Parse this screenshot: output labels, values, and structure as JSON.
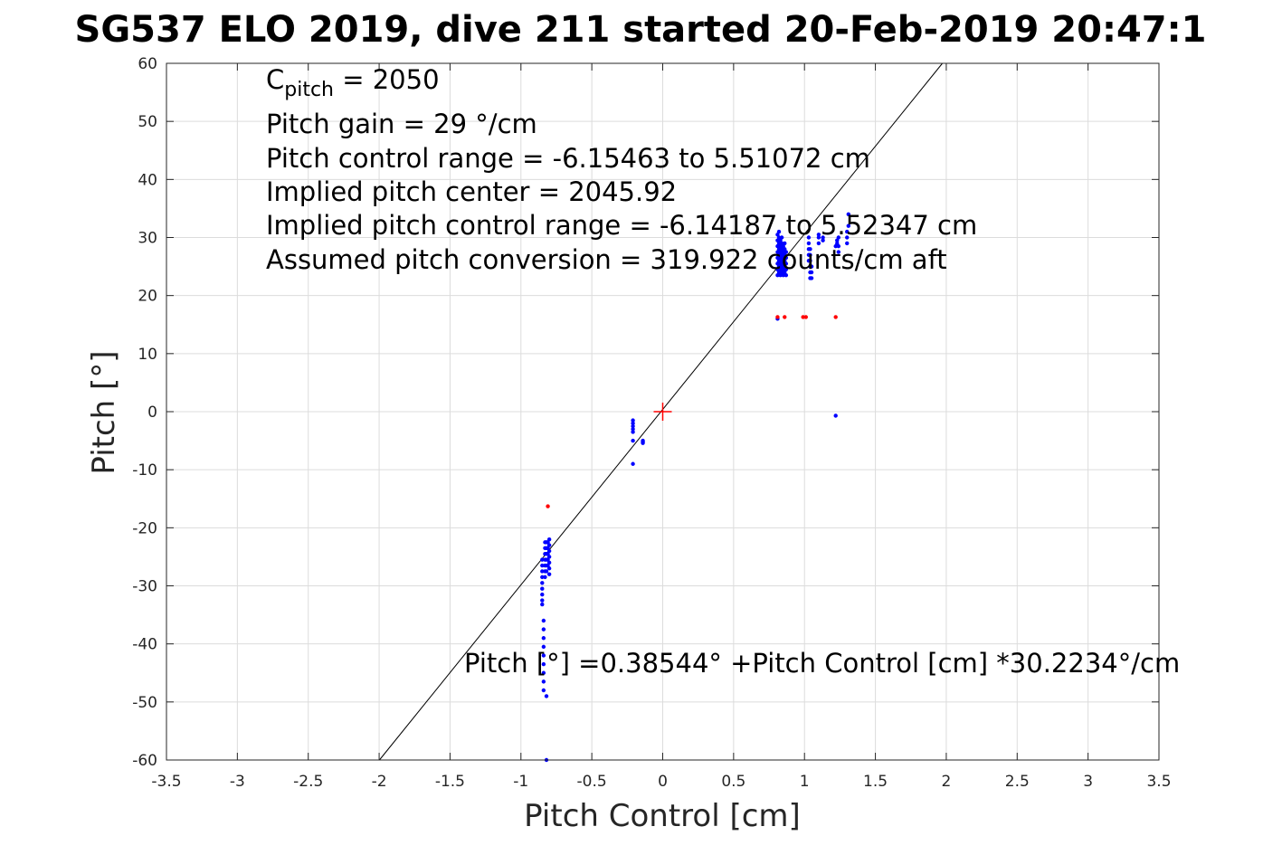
{
  "chart_data": {
    "type": "scatter",
    "title": "SG537 ELO 2019, dive 211 started 20-Feb-2019 20:47:1",
    "xlabel": "Pitch Control [cm]",
    "ylabel": "Pitch [°]",
    "xlim": [
      -3.5,
      3.5
    ],
    "ylim": [
      -60,
      60
    ],
    "xticks": [
      -3.5,
      -3,
      -2.5,
      -2,
      -1.5,
      -1,
      -0.5,
      0,
      0.5,
      1,
      1.5,
      2,
      2.5,
      3,
      3.5
    ],
    "xtick_labels": [
      "-3.5",
      "-3",
      "-2.5",
      "-2",
      "-1.5",
      "-1",
      "-0.5",
      "0",
      "0.5",
      "1",
      "1.5",
      "2",
      "2.5",
      "3",
      "3.5"
    ],
    "yticks": [
      -60,
      -50,
      -40,
      -30,
      -20,
      -10,
      0,
      10,
      20,
      30,
      40,
      50,
      60
    ],
    "ytick_labels": [
      "-60",
      "-50",
      "-40",
      "-30",
      "-20",
      "-10",
      "0",
      "10",
      "20",
      "30",
      "40",
      "50",
      "60"
    ],
    "grid": true,
    "annotations": {
      "cpitch_sym": "C",
      "cpitch_sub": "pitch",
      "cpitch_val": " = 2050",
      "pitch_gain": "Pitch gain = 29 °/cm",
      "control_range": "Pitch control range = -6.15463 to 5.51072 cm",
      "implied_center": "Implied pitch center = 2045.92",
      "implied_range": "Implied pitch control range = -6.14187 to 5.52347 cm",
      "conversion": "Assumed pitch conversion = 319.922 counts/cm aft",
      "fit_equation": "Pitch [°] =0.38544° +Pitch Control [cm] *30.2234°/cm"
    },
    "fit_line": {
      "intercept": 0.38544,
      "slope": 30.2234,
      "color": "#000000"
    },
    "center_marker": {
      "x": 0,
      "y": 0,
      "color": "#ff0000"
    },
    "series": [
      {
        "color": "#0000ff",
        "points": [
          [
            -0.85,
            -25.5
          ],
          [
            -0.85,
            -26.5
          ],
          [
            -0.85,
            -27.5
          ],
          [
            -0.85,
            -28.5
          ],
          [
            -0.85,
            -29.5
          ],
          [
            -0.85,
            -30.5
          ],
          [
            -0.85,
            -31.5
          ],
          [
            -0.85,
            -32.5
          ],
          [
            -0.85,
            -33.2
          ],
          [
            -0.84,
            -36
          ],
          [
            -0.84,
            -37.5
          ],
          [
            -0.84,
            -39
          ],
          [
            -0.84,
            -40.5
          ],
          [
            -0.84,
            -42
          ],
          [
            -0.84,
            -43.5
          ],
          [
            -0.84,
            -45
          ],
          [
            -0.84,
            -46.5
          ],
          [
            -0.84,
            -48
          ],
          [
            -0.83,
            -22.5
          ],
          [
            -0.83,
            -23.5
          ],
          [
            -0.83,
            -24.5
          ],
          [
            -0.83,
            -25.5
          ],
          [
            -0.83,
            -26.5
          ],
          [
            -0.83,
            -27.5
          ],
          [
            -0.83,
            -28.5
          ],
          [
            -0.82,
            -22.5
          ],
          [
            -0.82,
            -23.5
          ],
          [
            -0.82,
            -24.5
          ],
          [
            -0.82,
            -25.5
          ],
          [
            -0.82,
            -26.5
          ],
          [
            -0.82,
            -27.5
          ],
          [
            -0.82,
            -49
          ],
          [
            -0.82,
            -60
          ],
          [
            -0.81,
            -22.5
          ],
          [
            -0.81,
            -23.5
          ],
          [
            -0.81,
            -24.5
          ],
          [
            -0.81,
            -25.5
          ],
          [
            -0.81,
            -26.5
          ],
          [
            -0.8,
            -22
          ],
          [
            -0.8,
            -23
          ],
          [
            -0.8,
            -24
          ],
          [
            -0.8,
            -25
          ],
          [
            -0.8,
            -26
          ],
          [
            -0.8,
            -27
          ],
          [
            -0.8,
            -28
          ],
          [
            -0.21,
            -1.5
          ],
          [
            -0.21,
            -2.0
          ],
          [
            -0.21,
            -2.5
          ],
          [
            -0.21,
            -3.0
          ],
          [
            -0.21,
            -3.5
          ],
          [
            -0.21,
            -5.0
          ],
          [
            -0.21,
            -9.0
          ],
          [
            -0.14,
            -5.0
          ],
          [
            -0.14,
            -5.2
          ],
          [
            -0.14,
            -5.4
          ],
          [
            0.81,
            23.5
          ],
          [
            0.81,
            24.5
          ],
          [
            0.81,
            25.5
          ],
          [
            0.81,
            26.5
          ],
          [
            0.81,
            27.5
          ],
          [
            0.81,
            28.5
          ],
          [
            0.81,
            29.5
          ],
          [
            0.81,
            30.5
          ],
          [
            0.81,
            16.0
          ],
          [
            0.82,
            24
          ],
          [
            0.82,
            25
          ],
          [
            0.82,
            26
          ],
          [
            0.82,
            27
          ],
          [
            0.82,
            28
          ],
          [
            0.82,
            29
          ],
          [
            0.82,
            30
          ],
          [
            0.82,
            31
          ],
          [
            0.83,
            23.5
          ],
          [
            0.83,
            24.5
          ],
          [
            0.83,
            25.5
          ],
          [
            0.83,
            26.5
          ],
          [
            0.83,
            27.5
          ],
          [
            0.83,
            28.5
          ],
          [
            0.83,
            29.5
          ],
          [
            0.84,
            24
          ],
          [
            0.84,
            25
          ],
          [
            0.84,
            26
          ],
          [
            0.84,
            27
          ],
          [
            0.84,
            28
          ],
          [
            0.84,
            29
          ],
          [
            0.84,
            30
          ],
          [
            0.85,
            23.5
          ],
          [
            0.85,
            24.5
          ],
          [
            0.85,
            25.5
          ],
          [
            0.85,
            26.5
          ],
          [
            0.85,
            27.5
          ],
          [
            0.85,
            28.5
          ],
          [
            0.86,
            24
          ],
          [
            0.86,
            25
          ],
          [
            0.86,
            26
          ],
          [
            0.86,
            27
          ],
          [
            0.86,
            28
          ],
          [
            0.86,
            29
          ],
          [
            0.87,
            23.5
          ],
          [
            0.87,
            24.5
          ],
          [
            0.87,
            25.5
          ],
          [
            0.87,
            26.5
          ],
          [
            0.87,
            27.5
          ],
          [
            1.03,
            26
          ],
          [
            1.03,
            27
          ],
          [
            1.03,
            28
          ],
          [
            1.03,
            29
          ],
          [
            1.03,
            30
          ],
          [
            1.04,
            23
          ],
          [
            1.04,
            24
          ],
          [
            1.04,
            25
          ],
          [
            1.04,
            26
          ],
          [
            1.04,
            27
          ],
          [
            1.04,
            28
          ],
          [
            1.05,
            23
          ],
          [
            1.05,
            24
          ],
          [
            1.05,
            25
          ],
          [
            1.1,
            29
          ],
          [
            1.1,
            30
          ],
          [
            1.1,
            30.5
          ],
          [
            1.13,
            29.5
          ],
          [
            1.13,
            30
          ],
          [
            1.22,
            28.5
          ],
          [
            1.22,
            -0.7
          ],
          [
            1.23,
            29
          ],
          [
            1.23,
            29.5
          ],
          [
            1.24,
            27.5
          ],
          [
            1.24,
            28.5
          ],
          [
            1.24,
            30
          ],
          [
            1.3,
            29
          ],
          [
            1.3,
            30
          ],
          [
            1.3,
            31
          ],
          [
            1.31,
            32
          ],
          [
            1.31,
            34
          ]
        ]
      },
      {
        "color": "#ff0000",
        "points": [
          [
            -0.81,
            -16.3
          ],
          [
            0.81,
            16.3
          ],
          [
            0.86,
            16.3
          ],
          [
            0.99,
            16.3
          ],
          [
            1.01,
            16.3
          ],
          [
            1.22,
            16.3
          ]
        ]
      }
    ]
  }
}
